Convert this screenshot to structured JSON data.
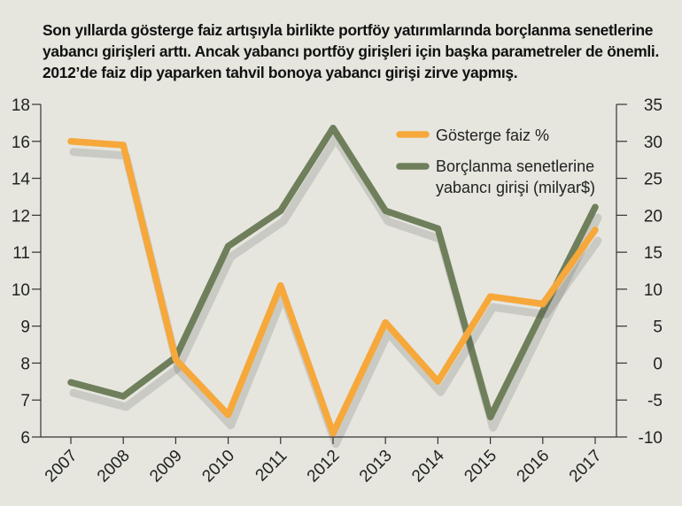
{
  "title": "Son yıllarda gösterge faiz artışıyla birlikte portföy yatırımlarında borçlanma senetlerine yabancı girişleri arttı. Ancak yabancı portföy girişleri için başka parametreler de önemli. 2012’de faiz dip yaparken tahvil bonoya yabancı girişi zirve yapmış.",
  "colors": {
    "background": "#e6e6df",
    "faiz": "#f6a83b",
    "borc": "#6f7f5b",
    "shadow": "#3a3a3a"
  },
  "chart_data": {
    "type": "line",
    "categories": [
      "2007",
      "2008",
      "2009",
      "2010",
      "2011",
      "2012",
      "2013",
      "2014",
      "2015",
      "2016",
      "2017"
    ],
    "left_axis": {
      "ticks": [
        "6",
        "7",
        "8",
        "9",
        "10",
        "11",
        "12",
        "14",
        "16",
        "18"
      ]
    },
    "right_axis": {
      "ticks": [
        "-10",
        "-5",
        "0",
        "5",
        "10",
        "15",
        "20",
        "25",
        "30",
        "35"
      ],
      "ylim": [
        -10,
        35
      ]
    },
    "legend_position": "top-right",
    "series": [
      {
        "name": "Gösterge faiz %",
        "axis": "left",
        "values": [
          16,
          15.8,
          8.1,
          6.6,
          10.1,
          6.1,
          9.1,
          7.5,
          9.8,
          9.6,
          11.6
        ]
      },
      {
        "name": "Borçlanma senetlerine yabancı girişi (milyar$)",
        "legend_lines": [
          "Borçlanma senetlerine",
          "yabancı girişi (milyar$)"
        ],
        "axis": "right",
        "values": [
          -2.6,
          -4.5,
          0.8,
          15.8,
          20.6,
          31.8,
          20.6,
          18.2,
          -7.3,
          7.0,
          21.1
        ]
      }
    ]
  }
}
